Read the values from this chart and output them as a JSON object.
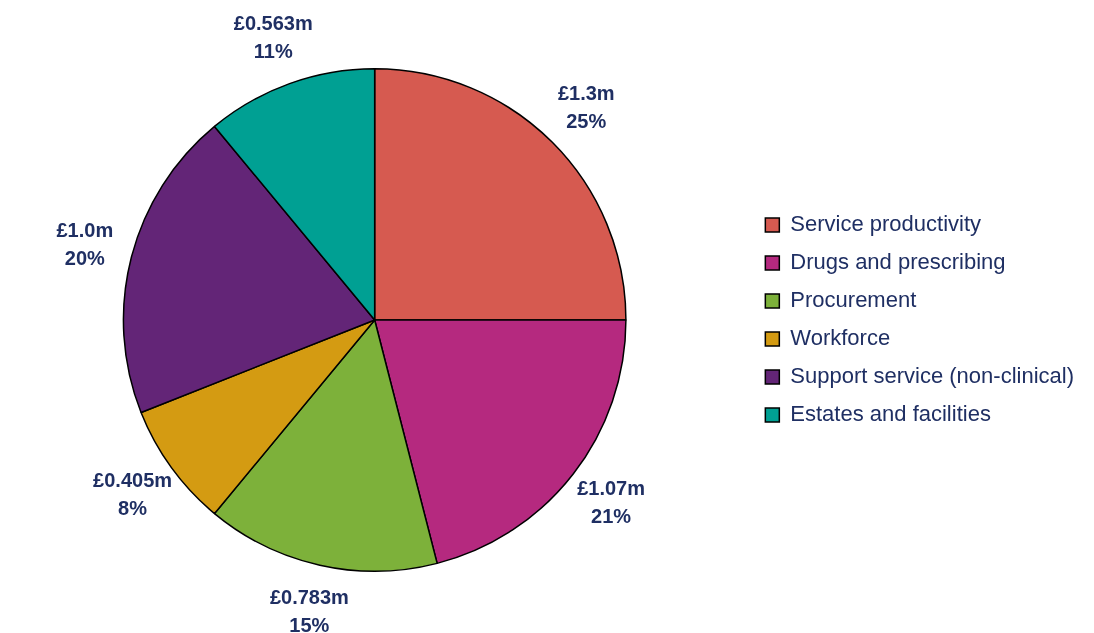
{
  "chart_data": {
    "type": "pie",
    "categories": [
      "Service productivity",
      "Drugs and prescribing",
      "Procurement",
      "Workforce",
      "Support service (non-clinical)",
      "Estates and facilities"
    ],
    "values": [
      25,
      21,
      15,
      8,
      20,
      11
    ],
    "value_labels": [
      "£1.3m\n25%",
      "£1.07m\n21%",
      "£0.783m\n15%",
      "£0.405m\n8%",
      "£1.0m\n20%",
      "£0.563m\n11%"
    ],
    "colors": [
      "#d65a50",
      "#b5297f",
      "#7db13a",
      "#d49b12",
      "#632577",
      "#00a093"
    ],
    "legend": "right"
  }
}
